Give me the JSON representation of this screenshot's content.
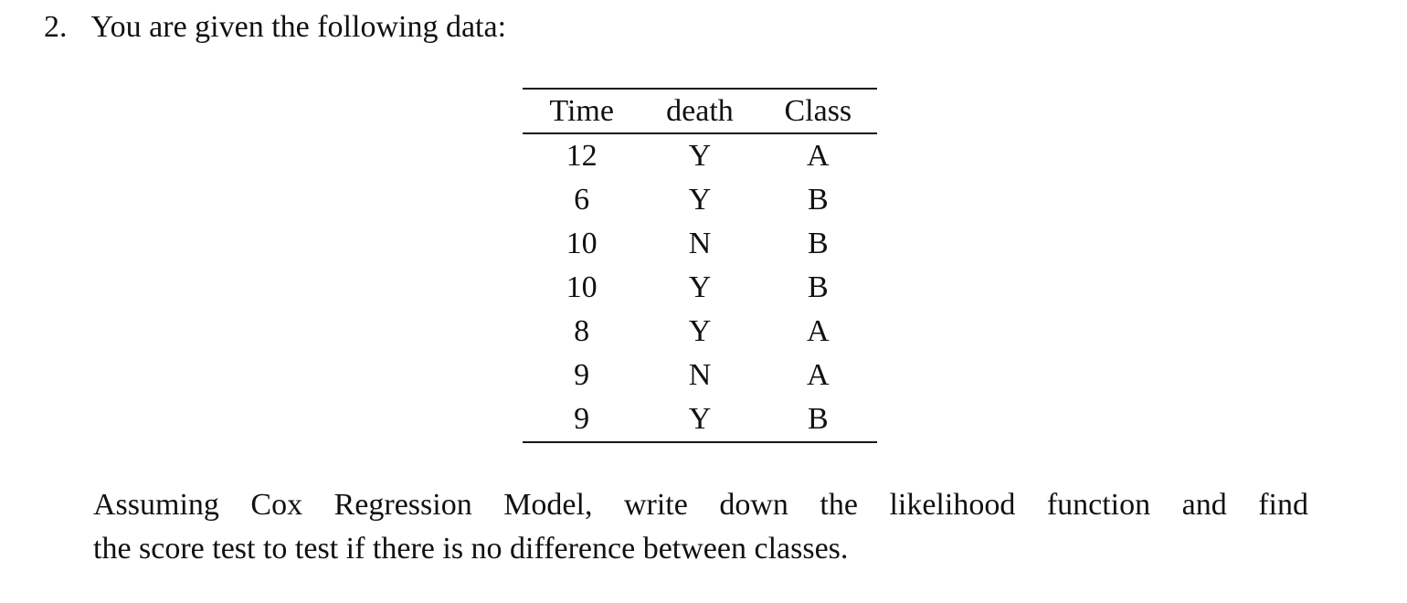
{
  "page": {
    "background_color": "#ffffff",
    "text_color": "#111111"
  },
  "problem": {
    "number": "2.",
    "intro": "You are given the following data:",
    "question_line1": "Assuming Cox Regression Model, write down the likelihood function and find",
    "question_line2": "the score test to test if there is no difference between classes."
  },
  "table": {
    "headers": [
      "Time",
      "death",
      "Class"
    ],
    "rows": [
      [
        "12",
        "Y",
        "A"
      ],
      [
        "6",
        "Y",
        "B"
      ],
      [
        "10",
        "N",
        "B"
      ],
      [
        "10",
        "Y",
        "B"
      ],
      [
        "8",
        "Y",
        "A"
      ],
      [
        "9",
        "N",
        "A"
      ],
      [
        "9",
        "Y",
        "B"
      ]
    ]
  }
}
